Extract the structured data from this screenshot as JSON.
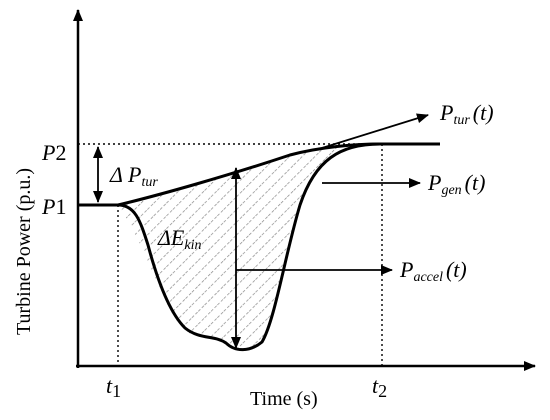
{
  "axes": {
    "y_label": "Turbine Power (p.u.)",
    "x_label": "Time (s)"
  },
  "ticks": {
    "p1": {
      "main": "P",
      "sub": "1"
    },
    "p2": {
      "main": "P",
      "sub": "2"
    },
    "t1": {
      "main": "t",
      "sub": "1"
    },
    "t2": {
      "main": "t",
      "sub": "2"
    }
  },
  "annotations": {
    "delta_p_tur": {
      "prefix": "Δ P",
      "sub": "tur"
    },
    "delta_e_kin": {
      "prefix": "ΔE",
      "sub": "kin"
    }
  },
  "curve_labels": {
    "p_tur": {
      "main": "P",
      "sub": "tur",
      "suffix": "(t)"
    },
    "p_gen": {
      "main": "P",
      "sub": "gen",
      "suffix": "(t)"
    },
    "p_accel": {
      "main": "P",
      "sub": "accel",
      "suffix": "(t)"
    }
  },
  "colors": {
    "ink": "#000000",
    "hatch": "#8a8a8a"
  }
}
